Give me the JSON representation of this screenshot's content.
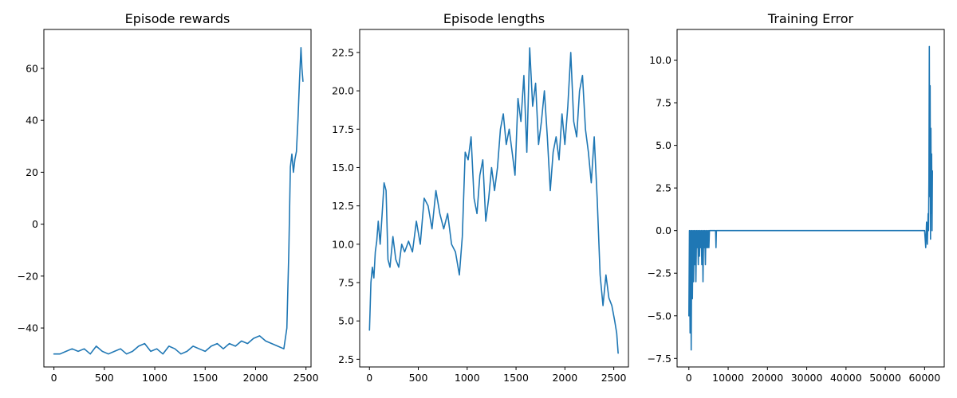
{
  "chart_data": [
    {
      "type": "line",
      "title": "Episode rewards",
      "xlabel": "",
      "ylabel": "",
      "xlim": [
        -100,
        2550
      ],
      "ylim": [
        -55,
        75
      ],
      "xticks": [
        0,
        500,
        1000,
        1500,
        2000,
        2500
      ],
      "yticks": [
        -40,
        -20,
        0,
        20,
        40,
        60
      ],
      "xtick_labels": [
        "0",
        "500",
        "1000",
        "1500",
        "2000",
        "2500"
      ],
      "ytick_labels": [
        "−40",
        "−20",
        "0",
        "20",
        "40",
        "60"
      ],
      "grid": false,
      "color": "#1f77b4",
      "series": [
        {
          "x": [
            0,
            60,
            120,
            180,
            240,
            300,
            360,
            420,
            480,
            540,
            600,
            660,
            720,
            780,
            840,
            900,
            960,
            1020,
            1080,
            1140,
            1200,
            1260,
            1320,
            1380,
            1440,
            1500,
            1560,
            1620,
            1680,
            1740,
            1800,
            1860,
            1920,
            1980,
            2040,
            2100,
            2160,
            2220,
            2280,
            2310,
            2330,
            2345,
            2360,
            2375,
            2390,
            2405,
            2420,
            2435,
            2450,
            2460,
            2470
          ],
          "y": [
            -50,
            -50,
            -49,
            -48,
            -49,
            -48,
            -50,
            -47,
            -49,
            -50,
            -49,
            -48,
            -50,
            -49,
            -47,
            -46,
            -49,
            -48,
            -50,
            -47,
            -48,
            -50,
            -49,
            -47,
            -48,
            -49,
            -47,
            -46,
            -48,
            -46,
            -47,
            -45,
            -46,
            -44,
            -43,
            -45,
            -46,
            -47,
            -48,
            -40,
            -10,
            22,
            27,
            20,
            25,
            28,
            40,
            55,
            68,
            60,
            55
          ]
        }
      ]
    },
    {
      "type": "line",
      "title": "Episode lengths",
      "xlabel": "",
      "ylabel": "",
      "xlim": [
        -100,
        2650
      ],
      "ylim": [
        2.0,
        24.0
      ],
      "xticks": [
        0,
        500,
        1000,
        1500,
        2000,
        2500
      ],
      "yticks": [
        2.5,
        5.0,
        7.5,
        10.0,
        12.5,
        15.0,
        17.5,
        20.0,
        22.5
      ],
      "xtick_labels": [
        "0",
        "500",
        "1000",
        "1500",
        "2000",
        "2500"
      ],
      "ytick_labels": [
        "2.5",
        "5.0",
        "7.5",
        "10.0",
        "12.5",
        "15.0",
        "17.5",
        "20.0",
        "22.5"
      ],
      "grid": false,
      "color": "#1f77b4",
      "series": [
        {
          "x": [
            0,
            15,
            30,
            45,
            60,
            75,
            90,
            110,
            130,
            150,
            170,
            190,
            210,
            240,
            270,
            300,
            330,
            360,
            400,
            440,
            480,
            520,
            560,
            600,
            640,
            680,
            720,
            760,
            800,
            840,
            880,
            920,
            950,
            980,
            1010,
            1040,
            1070,
            1100,
            1130,
            1160,
            1190,
            1220,
            1250,
            1280,
            1310,
            1340,
            1370,
            1400,
            1430,
            1460,
            1490,
            1520,
            1550,
            1580,
            1610,
            1640,
            1670,
            1700,
            1730,
            1760,
            1790,
            1820,
            1850,
            1880,
            1910,
            1940,
            1970,
            2000,
            2030,
            2060,
            2090,
            2120,
            2150,
            2180,
            2210,
            2240,
            2270,
            2300,
            2330,
            2360,
            2390,
            2420,
            2450,
            2480,
            2510,
            2530,
            2545
          ],
          "y": [
            4.4,
            7.5,
            8.5,
            7.8,
            9.5,
            10.2,
            11.5,
            10.0,
            12.0,
            14.0,
            13.5,
            9.0,
            8.5,
            10.5,
            9.0,
            8.5,
            10.0,
            9.5,
            10.2,
            9.5,
            11.5,
            10.0,
            13.0,
            12.5,
            11.0,
            13.5,
            12.0,
            11.0,
            12.0,
            10.0,
            9.5,
            8.0,
            10.5,
            16.0,
            15.5,
            17.0,
            13.0,
            12.0,
            14.5,
            15.5,
            11.5,
            13.0,
            15.0,
            13.5,
            15.0,
            17.5,
            18.5,
            16.5,
            17.5,
            16.0,
            14.5,
            19.5,
            18.0,
            21.0,
            16.0,
            22.8,
            19.0,
            20.5,
            16.5,
            18.0,
            20.0,
            17.0,
            13.5,
            16.0,
            17.0,
            15.5,
            18.5,
            16.5,
            19.0,
            22.5,
            18.0,
            17.0,
            20.0,
            21.0,
            17.5,
            16.0,
            14.0,
            17.0,
            13.0,
            8.0,
            6.0,
            8.0,
            6.5,
            6.0,
            5.0,
            4.2,
            2.9
          ]
        }
      ]
    },
    {
      "type": "line",
      "title": "Training Error",
      "xlabel": "",
      "ylabel": "",
      "xlim": [
        -3000,
        65000
      ],
      "ylim": [
        -8.0,
        11.8
      ],
      "xticks": [
        0,
        10000,
        20000,
        30000,
        40000,
        50000,
        60000
      ],
      "yticks": [
        -7.5,
        -5.0,
        -2.5,
        0.0,
        2.5,
        5.0,
        7.5,
        10.0
      ],
      "xtick_labels": [
        "0",
        "10000",
        "20000",
        "30000",
        "40000",
        "50000",
        "60000"
      ],
      "ytick_labels": [
        "−7.5",
        "−5.0",
        "−2.5",
        "0.0",
        "2.5",
        "5.0",
        "7.5",
        "10.0"
      ],
      "grid": false,
      "color": "#1f77b4",
      "series": [
        {
          "x": [
            0,
            150,
            300,
            450,
            600,
            750,
            900,
            1050,
            1200,
            1350,
            1500,
            1650,
            1800,
            1950,
            2100,
            2250,
            2400,
            2550,
            2700,
            2850,
            3000,
            3150,
            3300,
            3450,
            3600,
            3750,
            3900,
            4050,
            4200,
            4350,
            4500,
            4650,
            4800,
            4950,
            5100,
            5250,
            5500,
            6000,
            6500,
            6800,
            6900,
            7000,
            10000,
            20000,
            30000,
            40000,
            50000,
            60000,
            60300,
            60500,
            60700,
            60900,
            61000,
            61100,
            61200,
            61300,
            61400,
            61500,
            61600,
            61700,
            61800,
            61900,
            62000
          ],
          "y": [
            -5.0,
            0,
            -6.0,
            0,
            -7.0,
            0,
            -4.0,
            0,
            -3.0,
            0,
            -2.0,
            0,
            -3.0,
            0,
            -1.0,
            0,
            -2.0,
            0,
            -1.5,
            0,
            -1.0,
            0,
            -2.0,
            0,
            -3.0,
            0,
            -1.0,
            0,
            -2.0,
            0,
            -1.0,
            0,
            -1.0,
            0,
            -1.0,
            0,
            0,
            0,
            0,
            0,
            -1.0,
            0,
            0,
            0,
            0,
            0,
            0,
            0,
            -1.0,
            0.5,
            -0.8,
            1.0,
            0,
            3.0,
            10.8,
            2.0,
            8.5,
            -0.5,
            6.0,
            1.0,
            4.5,
            0,
            3.5
          ]
        }
      ]
    }
  ]
}
